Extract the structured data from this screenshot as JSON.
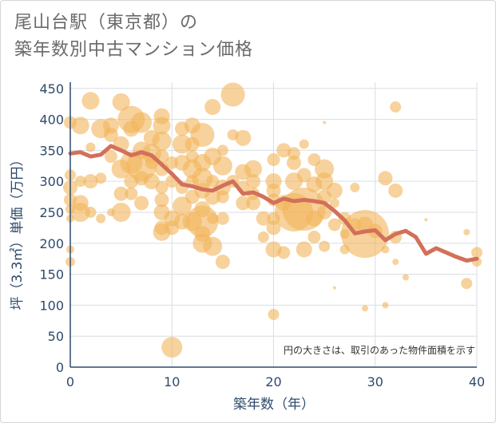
{
  "title": {
    "line1": "尾山台駅（東京都）の",
    "line2": "築年数別中古マンション価格"
  },
  "chart_data": {
    "type": "scatter",
    "xlabel": "築年数（年）",
    "ylabel": "坪（3.3㎡）単価（万円）",
    "xlim": [
      0,
      40
    ],
    "ylim": [
      0,
      460
    ],
    "xticks": [
      0,
      10,
      20,
      30,
      40
    ],
    "yticks": [
      0,
      50,
      100,
      150,
      200,
      250,
      300,
      350,
      400,
      450
    ],
    "grid": true,
    "note": "円の大きさは、取引のあった物件面積を示す",
    "colors": {
      "bubble": "#f2b45a",
      "line": "#d2705a",
      "axis": "#2e4a6b",
      "grid": "#d9dde3"
    },
    "bubbles": [
      {
        "x": 0,
        "y": 395,
        "r": 8
      },
      {
        "x": 0,
        "y": 310,
        "r": 7
      },
      {
        "x": 0,
        "y": 290,
        "r": 9
      },
      {
        "x": 0,
        "y": 270,
        "r": 8
      },
      {
        "x": 0,
        "y": 255,
        "r": 6
      },
      {
        "x": 0,
        "y": 240,
        "r": 5
      },
      {
        "x": 0,
        "y": 190,
        "r": 5
      },
      {
        "x": 0,
        "y": 170,
        "r": 6
      },
      {
        "x": 1,
        "y": 390,
        "r": 11
      },
      {
        "x": 1,
        "y": 265,
        "r": 10
      },
      {
        "x": 1,
        "y": 250,
        "r": 12
      },
      {
        "x": 1,
        "y": 300,
        "r": 7
      },
      {
        "x": 2,
        "y": 430,
        "r": 11
      },
      {
        "x": 2,
        "y": 355,
        "r": 6
      },
      {
        "x": 2,
        "y": 300,
        "r": 9
      },
      {
        "x": 2,
        "y": 250,
        "r": 7
      },
      {
        "x": 3,
        "y": 385,
        "r": 12
      },
      {
        "x": 3,
        "y": 305,
        "r": 7
      },
      {
        "x": 3,
        "y": 240,
        "r": 6
      },
      {
        "x": 4,
        "y": 390,
        "r": 10
      },
      {
        "x": 4,
        "y": 375,
        "r": 9
      },
      {
        "x": 4,
        "y": 340,
        "r": 8
      },
      {
        "x": 4,
        "y": 250,
        "r": 5
      },
      {
        "x": 5,
        "y": 428,
        "r": 11
      },
      {
        "x": 5,
        "y": 360,
        "r": 10
      },
      {
        "x": 5,
        "y": 320,
        "r": 12
      },
      {
        "x": 5,
        "y": 280,
        "r": 9
      },
      {
        "x": 5,
        "y": 250,
        "r": 12
      },
      {
        "x": 6,
        "y": 400,
        "r": 17
      },
      {
        "x": 6,
        "y": 385,
        "r": 10
      },
      {
        "x": 6,
        "y": 330,
        "r": 14
      },
      {
        "x": 6,
        "y": 300,
        "r": 9
      },
      {
        "x": 6,
        "y": 280,
        "r": 8
      },
      {
        "x": 7,
        "y": 395,
        "r": 13
      },
      {
        "x": 7,
        "y": 350,
        "r": 11
      },
      {
        "x": 7,
        "y": 325,
        "r": 19
      },
      {
        "x": 7,
        "y": 305,
        "r": 9
      },
      {
        "x": 7,
        "y": 265,
        "r": 9
      },
      {
        "x": 8,
        "y": 370,
        "r": 10
      },
      {
        "x": 8,
        "y": 345,
        "r": 12
      },
      {
        "x": 8,
        "y": 330,
        "r": 8
      },
      {
        "x": 8,
        "y": 300,
        "r": 10
      },
      {
        "x": 9,
        "y": 405,
        "r": 10
      },
      {
        "x": 9,
        "y": 390,
        "r": 11
      },
      {
        "x": 9,
        "y": 365,
        "r": 12
      },
      {
        "x": 9,
        "y": 340,
        "r": 9
      },
      {
        "x": 9,
        "y": 320,
        "r": 9
      },
      {
        "x": 9,
        "y": 290,
        "r": 8
      },
      {
        "x": 9,
        "y": 270,
        "r": 9
      },
      {
        "x": 9,
        "y": 250,
        "r": 10
      },
      {
        "x": 9,
        "y": 225,
        "r": 9
      },
      {
        "x": 9,
        "y": 218,
        "r": 11
      },
      {
        "x": 10,
        "y": 330,
        "r": 8
      },
      {
        "x": 10,
        "y": 300,
        "r": 8
      },
      {
        "x": 10,
        "y": 240,
        "r": 10
      },
      {
        "x": 10,
        "y": 225,
        "r": 9
      },
      {
        "x": 10,
        "y": 32,
        "r": 13
      },
      {
        "x": 11,
        "y": 385,
        "r": 9
      },
      {
        "x": 11,
        "y": 360,
        "r": 12
      },
      {
        "x": 11,
        "y": 330,
        "r": 10
      },
      {
        "x": 11,
        "y": 290,
        "r": 8
      },
      {
        "x": 11,
        "y": 260,
        "r": 12
      },
      {
        "x": 11,
        "y": 235,
        "r": 10
      },
      {
        "x": 12,
        "y": 390,
        "r": 10
      },
      {
        "x": 12,
        "y": 360,
        "r": 9
      },
      {
        "x": 12,
        "y": 340,
        "r": 8
      },
      {
        "x": 12,
        "y": 320,
        "r": 12
      },
      {
        "x": 12,
        "y": 300,
        "r": 8
      },
      {
        "x": 12,
        "y": 275,
        "r": 9
      },
      {
        "x": 12,
        "y": 235,
        "r": 12
      },
      {
        "x": 13,
        "y": 375,
        "r": 15
      },
      {
        "x": 13,
        "y": 330,
        "r": 11
      },
      {
        "x": 13,
        "y": 305,
        "r": 13
      },
      {
        "x": 13,
        "y": 285,
        "r": 10
      },
      {
        "x": 13,
        "y": 255,
        "r": 10
      },
      {
        "x": 13,
        "y": 235,
        "r": 20
      },
      {
        "x": 13,
        "y": 215,
        "r": 10
      },
      {
        "x": 13,
        "y": 200,
        "r": 12
      },
      {
        "x": 14,
        "y": 420,
        "r": 10
      },
      {
        "x": 14,
        "y": 340,
        "r": 11
      },
      {
        "x": 14,
        "y": 300,
        "r": 8
      },
      {
        "x": 14,
        "y": 275,
        "r": 10
      },
      {
        "x": 14,
        "y": 240,
        "r": 7
      },
      {
        "x": 14,
        "y": 195,
        "r": 12
      },
      {
        "x": 15,
        "y": 350,
        "r": 7
      },
      {
        "x": 15,
        "y": 325,
        "r": 12
      },
      {
        "x": 15,
        "y": 290,
        "r": 10
      },
      {
        "x": 15,
        "y": 275,
        "r": 8
      },
      {
        "x": 15,
        "y": 240,
        "r": 8
      },
      {
        "x": 15,
        "y": 170,
        "r": 9
      },
      {
        "x": 16,
        "y": 440,
        "r": 15
      },
      {
        "x": 16,
        "y": 375,
        "r": 7
      },
      {
        "x": 16,
        "y": 300,
        "r": 8
      },
      {
        "x": 17,
        "y": 370,
        "r": 10
      },
      {
        "x": 17,
        "y": 315,
        "r": 10
      },
      {
        "x": 17,
        "y": 290,
        "r": 8
      },
      {
        "x": 17,
        "y": 265,
        "r": 9
      },
      {
        "x": 18,
        "y": 320,
        "r": 11
      },
      {
        "x": 18,
        "y": 300,
        "r": 9
      },
      {
        "x": 18,
        "y": 280,
        "r": 8
      },
      {
        "x": 18,
        "y": 265,
        "r": 9
      },
      {
        "x": 19,
        "y": 240,
        "r": 9
      },
      {
        "x": 19,
        "y": 210,
        "r": 7
      },
      {
        "x": 20,
        "y": 335,
        "r": 8
      },
      {
        "x": 20,
        "y": 300,
        "r": 10
      },
      {
        "x": 20,
        "y": 285,
        "r": 9
      },
      {
        "x": 20,
        "y": 270,
        "r": 8
      },
      {
        "x": 20,
        "y": 240,
        "r": 8
      },
      {
        "x": 20,
        "y": 225,
        "r": 9
      },
      {
        "x": 20,
        "y": 190,
        "r": 10
      },
      {
        "x": 20,
        "y": 85,
        "r": 7
      },
      {
        "x": 21,
        "y": 350,
        "r": 9
      },
      {
        "x": 21,
        "y": 265,
        "r": 10
      },
      {
        "x": 21,
        "y": 185,
        "r": 8
      },
      {
        "x": 22,
        "y": 345,
        "r": 8
      },
      {
        "x": 22,
        "y": 330,
        "r": 9
      },
      {
        "x": 22,
        "y": 300,
        "r": 11
      },
      {
        "x": 22,
        "y": 250,
        "r": 24
      },
      {
        "x": 23,
        "y": 360,
        "r": 6
      },
      {
        "x": 23,
        "y": 310,
        "r": 9
      },
      {
        "x": 23,
        "y": 255,
        "r": 27
      },
      {
        "x": 23,
        "y": 190,
        "r": 10
      },
      {
        "x": 24,
        "y": 335,
        "r": 8
      },
      {
        "x": 24,
        "y": 295,
        "r": 10
      },
      {
        "x": 24,
        "y": 240,
        "r": 10
      },
      {
        "x": 24,
        "y": 210,
        "r": 8
      },
      {
        "x": 25,
        "y": 320,
        "r": 12
      },
      {
        "x": 25,
        "y": 300,
        "r": 11
      },
      {
        "x": 25,
        "y": 275,
        "r": 9
      },
      {
        "x": 25,
        "y": 250,
        "r": 9
      },
      {
        "x": 25,
        "y": 195,
        "r": 7
      },
      {
        "x": 25,
        "y": 395,
        "r": 2
      },
      {
        "x": 26,
        "y": 285,
        "r": 10
      },
      {
        "x": 26,
        "y": 265,
        "r": 6
      },
      {
        "x": 26,
        "y": 230,
        "r": 8
      },
      {
        "x": 26,
        "y": 128,
        "r": 2
      },
      {
        "x": 27,
        "y": 240,
        "r": 8
      },
      {
        "x": 27,
        "y": 215,
        "r": 6
      },
      {
        "x": 27,
        "y": 190,
        "r": 6
      },
      {
        "x": 28,
        "y": 290,
        "r": 6
      },
      {
        "x": 28,
        "y": 230,
        "r": 8
      },
      {
        "x": 29,
        "y": 215,
        "r": 30
      },
      {
        "x": 29,
        "y": 230,
        "r": 10
      },
      {
        "x": 29,
        "y": 95,
        "r": 4
      },
      {
        "x": 30,
        "y": 220,
        "r": 9
      },
      {
        "x": 31,
        "y": 305,
        "r": 9
      },
      {
        "x": 31,
        "y": 190,
        "r": 5
      },
      {
        "x": 31,
        "y": 100,
        "r": 4
      },
      {
        "x": 32,
        "y": 420,
        "r": 7
      },
      {
        "x": 32,
        "y": 285,
        "r": 9
      },
      {
        "x": 32,
        "y": 210,
        "r": 8
      },
      {
        "x": 32,
        "y": 170,
        "r": 4
      },
      {
        "x": 33,
        "y": 145,
        "r": 4
      },
      {
        "x": 35,
        "y": 238,
        "r": 2
      },
      {
        "x": 39,
        "y": 218,
        "r": 4
      },
      {
        "x": 39,
        "y": 135,
        "r": 7
      },
      {
        "x": 40,
        "y": 185,
        "r": 7
      },
      {
        "x": 40,
        "y": 170,
        "r": 6
      }
    ],
    "series": [
      {
        "values": [
          [
            0,
            345
          ],
          [
            1,
            347
          ],
          [
            2,
            340
          ],
          [
            3,
            343
          ],
          [
            4,
            357
          ],
          [
            5,
            350
          ],
          [
            6,
            342
          ],
          [
            7,
            347
          ],
          [
            8,
            342
          ],
          [
            9,
            327
          ],
          [
            10,
            312
          ],
          [
            11,
            295
          ],
          [
            12,
            292
          ],
          [
            13,
            287
          ],
          [
            14,
            285
          ],
          [
            15,
            293
          ],
          [
            16,
            300
          ],
          [
            17,
            280
          ],
          [
            18,
            282
          ],
          [
            19,
            275
          ],
          [
            20,
            265
          ],
          [
            21,
            272
          ],
          [
            22,
            268
          ],
          [
            23,
            270
          ],
          [
            24,
            268
          ],
          [
            25,
            265
          ],
          [
            26,
            252
          ],
          [
            27,
            237
          ],
          [
            28,
            216
          ],
          [
            29,
            219
          ],
          [
            30,
            221
          ],
          [
            31,
            205
          ],
          [
            32,
            215
          ],
          [
            33,
            220
          ],
          [
            34,
            210
          ],
          [
            35,
            183
          ],
          [
            36,
            192
          ],
          [
            37,
            185
          ],
          [
            38,
            178
          ],
          [
            39,
            172
          ],
          [
            40,
            175
          ]
        ]
      }
    ]
  }
}
